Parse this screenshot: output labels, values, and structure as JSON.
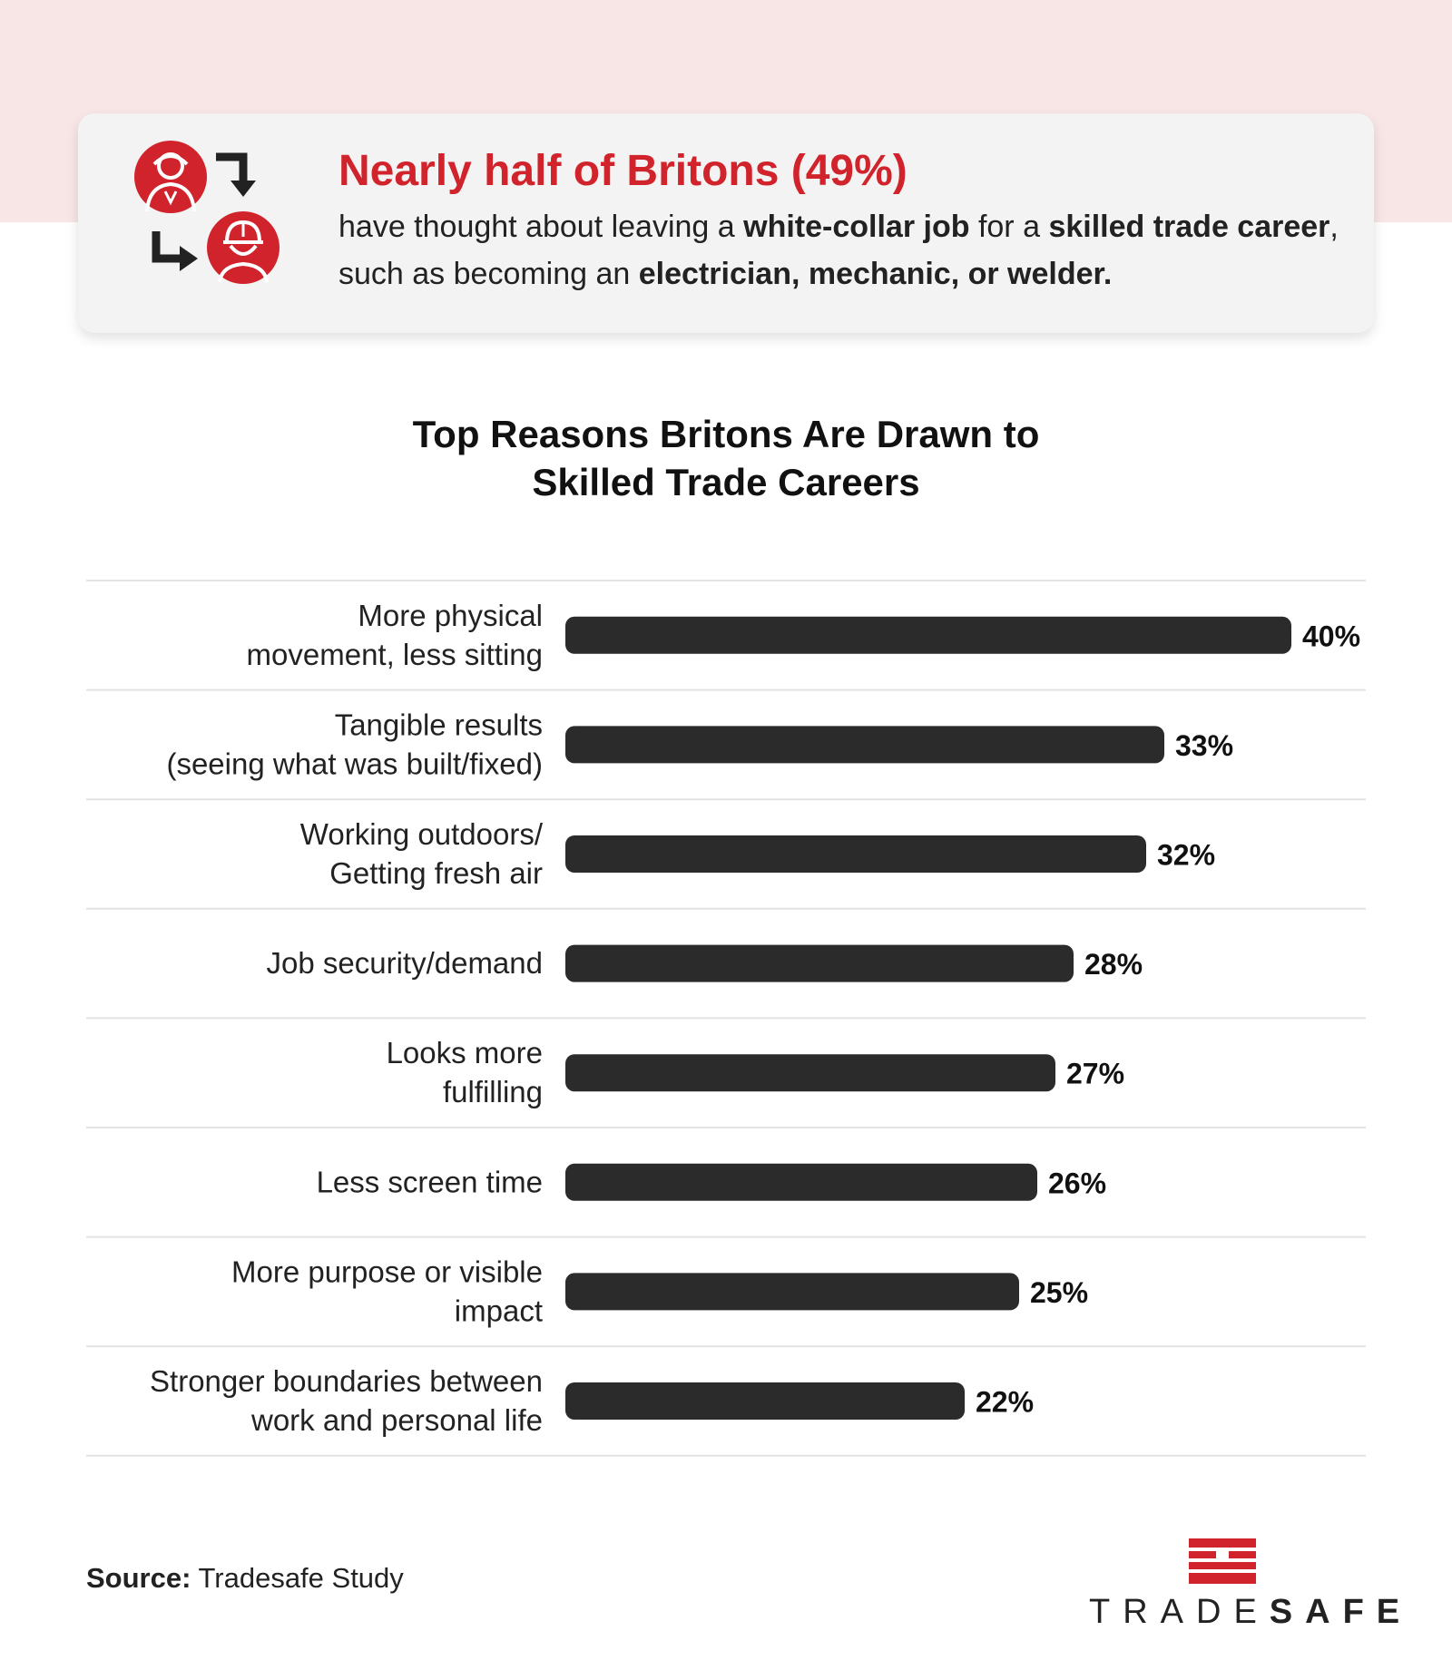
{
  "callout": {
    "headline": "Nearly half of Britons (49%)",
    "body_parts": [
      {
        "text": "have thought about leaving a ",
        "bold": false
      },
      {
        "text": "white-collar job",
        "bold": true
      },
      {
        "text": " for a ",
        "bold": false
      },
      {
        "text": "skilled trade career",
        "bold": true
      },
      {
        "text": ", such as becoming an ",
        "bold": false
      },
      {
        "text": "electrician, mechanic, or welder.",
        "bold": true
      }
    ],
    "icons": [
      "office-worker-icon",
      "arrow-down-right-icon",
      "arrow-right-down-icon",
      "construction-worker-icon"
    ]
  },
  "chart_data": {
    "type": "bar",
    "orientation": "horizontal",
    "title_lines": [
      "Top Reasons Britons Are Drawn to",
      "Skilled Trade Careers"
    ],
    "categories": [
      [
        "More physical",
        "movement, less sitting"
      ],
      [
        "Tangible results",
        "(seeing what was built/fixed)"
      ],
      [
        "Working outdoors/",
        "Getting fresh air"
      ],
      [
        "Job security/demand"
      ],
      [
        "Looks more",
        "fulfilling"
      ],
      [
        "Less screen time"
      ],
      [
        "More purpose or visible",
        "impact"
      ],
      [
        "Stronger boundaries between",
        "work and personal life"
      ]
    ],
    "values": [
      40,
      33,
      32,
      28,
      27,
      26,
      25,
      22
    ],
    "value_labels": [
      "40%",
      "33%",
      "32%",
      "28%",
      "27%",
      "26%",
      "25%",
      "22%"
    ],
    "xlim": [
      0,
      40
    ],
    "grid": false,
    "bar_color": "#2b2b2b",
    "divider_color": "#e3e3e3"
  },
  "footer": {
    "source_label": "Source:",
    "source_text": "Tradesafe Study",
    "logo_regular": "TRADE",
    "logo_bold": "SAFE"
  },
  "colors": {
    "accent_red": "#d0232b",
    "band_pink": "#f8e6e7",
    "card_gray": "#f3f3f3"
  }
}
